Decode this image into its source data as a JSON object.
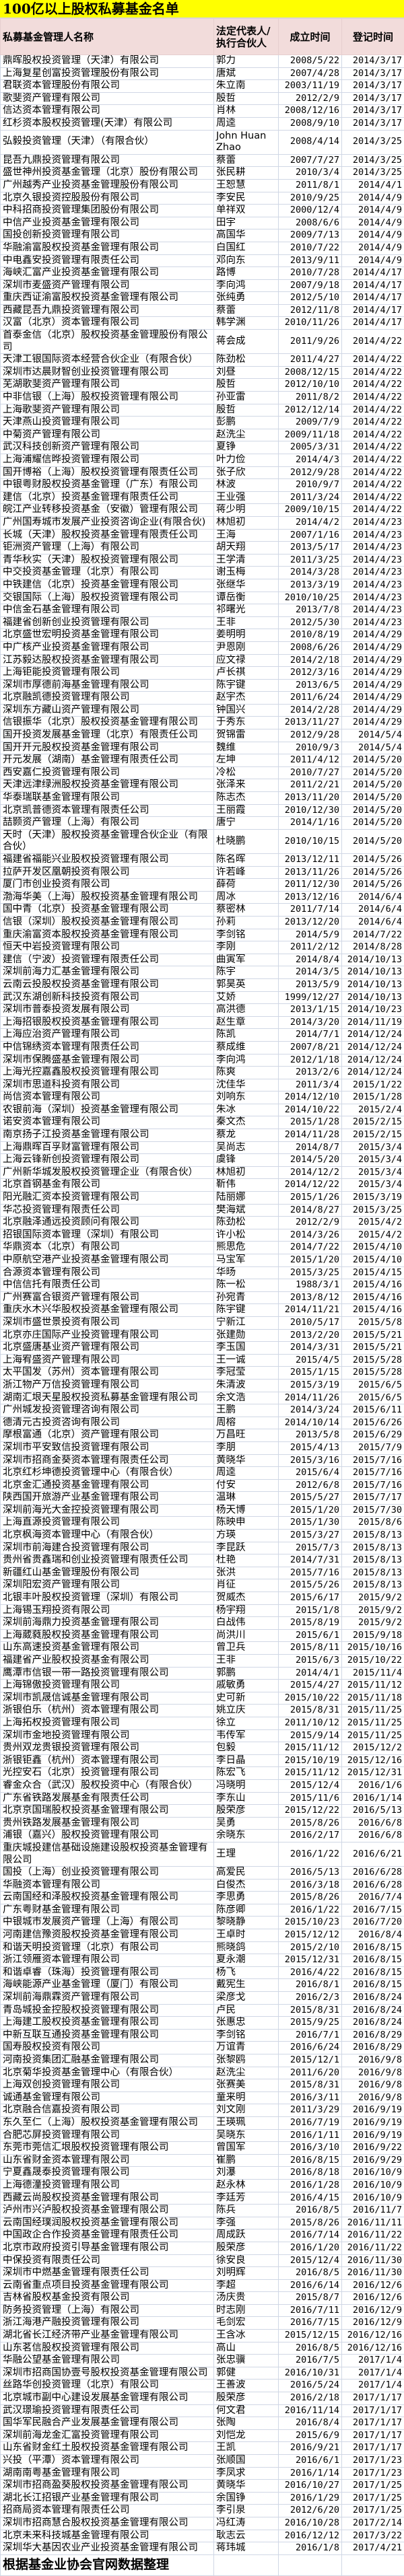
{
  "title": "100亿以上股权私募基金名单",
  "colors": {
    "title_bg": "#ffff00",
    "header_bg": "#f2dcdb",
    "grid": "#d0d7e5"
  },
  "table": {
    "headers": [
      "私募基金管理人名称",
      "法定代表人/执行合伙人",
      "成立时间",
      "登记时间"
    ],
    "rows": [
      [
        "鼎晖股权投资管理（天津）有限公司",
        "郭力",
        "2008/5/22",
        "2014/3/17"
      ],
      [
        "上海复星创富投资管理股份有限公司",
        "唐斌",
        "2007/4/28",
        "2014/3/17"
      ],
      [
        "君联资本管理股份有限公司",
        "朱立南",
        "2003/11/19",
        "2014/3/17"
      ],
      [
        "歌斐资产管理有限公司",
        "殷哲",
        "2012/2/9",
        "2014/3/17"
      ],
      [
        "信达资本管理有限公司",
        "肖林",
        "2008/12/16",
        "2014/3/17"
      ],
      [
        "红杉资本股权投资管理(天津）有限公司",
        "周逵",
        "2008/9/10",
        "2014/3/17"
      ],
      [
        "弘毅投资管理（天津）（有限合伙）",
        "John Huan Zhao",
        "2008/4/14",
        "2014/3/25"
      ],
      [
        "昆吾九鼎投资管理有限公司",
        "蔡蕾",
        "2007/7/27",
        "2014/3/25"
      ],
      [
        "盛世神州投资基金管理（北京）股份有限公司",
        "张民耕",
        "2010/3/4",
        "2014/3/25"
      ],
      [
        "广州越秀产业投资基金管理股份有限公司",
        "王恕慧",
        "2011/8/1",
        "2014/4/1"
      ],
      [
        "北京久银投资控股股份有限公司",
        "李安民",
        "2010/9/25",
        "2014/4/9"
      ],
      [
        "中科招商投资管理集团股份有限公司",
        "单祥双",
        "2000/12/4",
        "2014/4/9"
      ],
      [
        "中信产业投资基金管理有限公司",
        "田宇",
        "2008/6/6",
        "2014/4/9"
      ],
      [
        "国投创新投资管理有限公司",
        "高国华",
        "2009/7/13",
        "2014/4/9"
      ],
      [
        "华融渝富股权投资基金管理有限公司",
        "白国红",
        "2010/7/22",
        "2014/4/9"
      ],
      [
        "中电鑫安投资管理有限责任公司",
        "邓向东",
        "2013/9/11",
        "2014/4/9"
      ],
      [
        "海峡汇富产业投资基金管理有限公司",
        "路博",
        "2010/7/28",
        "2014/4/17"
      ],
      [
        "深圳市麦盛资产管理有限公司",
        "李向鸿",
        "2007/9/18",
        "2014/4/17"
      ],
      [
        "重庆西证渝富股权投资基金管理有限公司",
        "张纯勇",
        "2012/5/10",
        "2014/4/17"
      ],
      [
        "西藏昆吾九鼎投资管理有限公司",
        "蔡蕾",
        "2012/11/8",
        "2014/4/17"
      ],
      [
        "汉富（北京）资本管理有限公司",
        "韩学渊",
        "2010/11/26",
        "2014/4/17"
      ],
      [
        "首泰金信（北京）股权投资基金管理股份有限公司",
        "蒋会成",
        "2011/9/26",
        "2014/4/22"
      ],
      [
        "天津工银国际资本经营合伙企业（有限合伙）",
        "陈劲松",
        "2011/4/27",
        "2014/4/22"
      ],
      [
        "深圳市达晨财智创业投资管理有限公司",
        "刘昼",
        "2008/12/15",
        "2014/4/22"
      ],
      [
        "芜湖歌斐资产管理有限公司",
        "殷哲",
        "2012/10/10",
        "2014/4/22"
      ],
      [
        "中非信银（上海）股权投资管理有限公司",
        "孙亚雷",
        "2011/8/2",
        "2014/4/22"
      ],
      [
        "上海歌斐资产管理有限公司",
        "殷哲",
        "2012/12/14",
        "2014/4/22"
      ],
      [
        "天津燕山投资管理有限公司",
        "彭鹏",
        "2009/7/9",
        "2014/4/22"
      ],
      [
        "中菊资产管理有限公司",
        "赵洗尘",
        "2009/11/18",
        "2014/4/22"
      ],
      [
        "武汉科技创新资产管理有限公司",
        "夏铮",
        "2005/3/31",
        "2014/4/22"
      ],
      [
        "上海浦耀信晔投资管理有限公司",
        "叶力俭",
        "2014/4/3",
        "2014/4/22"
      ],
      [
        "国开博裕（上海）股权投资管理有限责任公司",
        "张子欣",
        "2012/9/28",
        "2014/4/22"
      ],
      [
        "中银粤财股权投资基金管理（广东）有限公司",
        "林波",
        "2010/9/7",
        "2014/4/22"
      ],
      [
        "建信（北京）投资基金管理有限责任公司",
        "王业强",
        "2011/3/24",
        "2014/4/22"
      ],
      [
        "皖江产业转移投资基金（安徽）管理有限公司",
        "蒋少明",
        "2009/10/15",
        "2014/4/22"
      ],
      [
        "广州国寿城市发展产业投资咨询企业(有限合伙)",
        "林旭初",
        "2014/4/2",
        "2014/4/23"
      ],
      [
        "长城（天津）股权投资基金管理有限责任公司",
        "王海",
        "2007/1/16",
        "2014/4/23"
      ],
      [
        "钜洲资产管理（上海）有限公司",
        "胡天翔",
        "2013/5/17",
        "2014/4/23"
      ],
      [
        "青华秋实（天津）股权投资管理有限公司",
        "王学清",
        "2011/3/25",
        "2014/4/23"
      ],
      [
        "中交投资基金管理（北京）有限公司",
        "谢玉梅",
        "2014/3/28",
        "2014/4/23"
      ],
      [
        "中铁建信（北京）投资基金管理有限公司",
        "张继华",
        "2013/3/19",
        "2014/4/23"
      ],
      [
        "交银国际（上海）股权投资管理有限公司",
        "谭岳衡",
        "2010/10/25",
        "2014/4/23"
      ],
      [
        "中信金石基金管理有限公司",
        "祁曙光",
        "2013/7/8",
        "2014/4/23"
      ],
      [
        "福建省创新创业投资管理有限公司",
        "王非",
        "2012/5/30",
        "2014/4/23"
      ],
      [
        "北京盛世宏明投资基金管理有限公司",
        "姜明明",
        "2010/8/19",
        "2014/4/29"
      ],
      [
        "中广核产业投资基金管理有限公司",
        "尹恩刚",
        "2008/6/26",
        "2014/4/29"
      ],
      [
        "江苏毅达股权投资基金管理有限公司",
        "应文禄",
        "2014/2/18",
        "2014/4/29"
      ],
      [
        "上海钜能投资管理有限公司",
        "卢长祺",
        "2012/3/16",
        "2014/4/29"
      ],
      [
        "深圳市厚德前海基金管理有限公司",
        "陈宇键",
        "2013/6/5",
        "2014/4/29"
      ],
      [
        "北京融凯德投资管理有限公司",
        "赵宇杰",
        "2011/6/24",
        "2014/4/29"
      ],
      [
        "深圳东方藏山资产管理有限公司",
        "钟国兴",
        "2014/2/28",
        "2014/4/29"
      ],
      [
        "信银振华（北京）股权投资基金管理有限公司",
        "于秀东",
        "2013/11/27",
        "2014/4/29"
      ],
      [
        "国开投资发展基金管理（北京）有限责任公司",
        "贺锦雷",
        "2012/9/28",
        "2014/5/4"
      ],
      [
        "国开开元股权投资基金管理有限公司",
        "魏维",
        "2010/9/3",
        "2014/5/4"
      ],
      [
        "开元发展（湖南）基金管理有限责任公司",
        "左坤",
        "2011/4/12",
        "2014/5/20"
      ],
      [
        "西安嘉仁投资管理有限公司",
        "冷松",
        "2010/7/27",
        "2014/5/20"
      ],
      [
        "天津远津绿洲股权投资基金管理有限公司",
        "张泽来",
        "2011/2/21",
        "2014/5/20"
      ],
      [
        "华泰瑞联基金管理有限公司",
        "陈志杰",
        "2013/11/20",
        "2014/5/20"
      ],
      [
        "北京凯普德资本管理有限责任公司",
        "王丽霞",
        "2010/12/30",
        "2014/5/20"
      ],
      [
        "喆颢资产管理（上海）有限公司",
        "唐宁",
        "2014/1/16",
        "2014/5/20"
      ],
      [
        "天时（天津）股权投资基金管理合伙企业（有限合伙）",
        "杜晓鹏",
        "2010/10/15",
        "2014/5/20"
      ],
      [
        "福建省福能兴业股权投资管理有限公司",
        "陈名晖",
        "2013/12/11",
        "2014/5/26"
      ],
      [
        "拉萨开发区凰朝投资有限公司",
        "许若峰",
        "2013/11/26",
        "2014/5/26"
      ],
      [
        "厦门市创业投资有限公司",
        "薛荷",
        "2011/12/30",
        "2014/5/26"
      ],
      [
        "渤海华美（上海）股权投资基金管理有限公司",
        "周冰",
        "2013/12/16",
        "2014/6/4"
      ],
      [
        "国中青（北京）投资基金管理有限公司",
        "蔡密林",
        "2011/7/14",
        "2014/6/4"
      ],
      [
        "信银（深圳）股权投资基金管理有限公司",
        "孙莉",
        "2013/12/20",
        "2014/6/4"
      ],
      [
        "重庆渝富资本股权投资基金管理有限公司",
        "李剑铭",
        "2014/5/9",
        "2014/7/22"
      ],
      [
        "恒天中岩投资管理有限公司",
        "李刚",
        "2011/2/12",
        "2014/8/28"
      ],
      [
        "建信（宁波）投资管理有限责任公司",
        "曲寅军",
        "2014/8/4",
        "2014/10/13"
      ],
      [
        "深圳前海力汇基金管理有限公司",
        "陈宇",
        "2014/3/5",
        "2014/10/13"
      ],
      [
        "云南云投股权投资基金管理有限公司",
        "郭昊英",
        "2013/5/9",
        "2014/10/13"
      ],
      [
        "武汉东湖创新科技投资有限公司",
        "艾娇",
        "1999/12/27",
        "2014/10/13"
      ],
      [
        "深圳市普泰投资发展有限公司",
        "高洪德",
        "2013/1/15",
        "2014/10/23"
      ],
      [
        "上海招银股权投资基金管理有限公司",
        "赵生章",
        "2014/3/20",
        "2014/11/19"
      ],
      [
        "上海应治资产管理有限公司",
        "陈凯",
        "2014/7/1",
        "2014/12/24"
      ],
      [
        "中信锦绣资本管理有限责任公司",
        "蔡成维",
        "2007/8/21",
        "2014/12/24"
      ],
      [
        "深圳市保腾盛基金管理有限公司",
        "李向鸿",
        "2012/1/18",
        "2014/12/24"
      ],
      [
        "上海光控嘉鑫股权投资管理有限公司",
        "陈爽",
        "2013/2/6",
        "2014/12/24"
      ],
      [
        "深圳市思道科投资有限公司",
        "沈佳华",
        "2011/3/4",
        "2015/1/22"
      ],
      [
        "尚信资本管理有限公司",
        "刘响东",
        "2014/12/10",
        "2015/1/28"
      ],
      [
        "农银前海（深圳）投资基金管理有限公司",
        "朱冰",
        "2014/10/22",
        "2015/2/4"
      ],
      [
        "诺安资本管理有限公司",
        "秦文杰",
        "2015/1/28",
        "2015/2/15"
      ],
      [
        "南京扬子江投资基金管理有限公司",
        "蔡龙",
        "2014/11/28",
        "2015/2/15"
      ],
      [
        "上海鼎晖百孚财富管理有限公司",
        "吴尚志",
        "2014/8/7",
        "2015/3/4"
      ],
      [
        "上海云锋新创投资管理有限公司",
        "虞锋",
        "2014/5/20",
        "2015/3/4"
      ],
      [
        "广州新华城发股权投资管理企业（有限合伙）",
        "林旭初",
        "2014/12/2",
        "2015/3/4"
      ],
      [
        "北京首钢基金有限公司",
        "靳伟",
        "2014/12/22",
        "2015/3/4"
      ],
      [
        "阳光融汇资本投资管理有限公司",
        "陆丽娜",
        "2015/1/26",
        "2015/3/19"
      ],
      [
        "华芯投资管理有限责任公司",
        "樊海斌",
        "2014/8/27",
        "2015/3/25"
      ],
      [
        "北京融泽通远投资顾问有限公司",
        "陈劲松",
        "2012/2/9",
        "2015/4/2"
      ],
      [
        "招银国际资本管理（深圳）有限公司",
        "许小松",
        "2014/3/26",
        "2015/4/2"
      ],
      [
        "华鼎资本（北京）有限公司",
        "熊思危",
        "2014/7/22",
        "2015/4/10"
      ],
      [
        "中原航空港产业投资基金管理有限公司",
        "马宝军",
        "2015/1/20",
        "2015/4/10"
      ],
      [
        "合源资本管理有限公司",
        "华旸",
        "2015/3/25",
        "2015/4/15"
      ],
      [
        "中信信托有限责任公司",
        "陈一松",
        "1988/3/1",
        "2015/4/16"
      ],
      [
        "广州赛富合银资产管理有限公司",
        "孙宛青",
        "2013/8/12",
        "2015/4/16"
      ],
      [
        "重庆水木兴华股权投资基金管理有限公司",
        "陈宇键",
        "2014/11/21",
        "2015/4/16"
      ],
      [
        "深圳市盛世景投资有限公司",
        "宁新江",
        "2010/5/17",
        "2015/5/8"
      ],
      [
        "北京亦庄国际产业投资管理有限公司",
        "张建勋",
        "2013/2/20",
        "2015/5/21"
      ],
      [
        "北京盛唐基业资产管理有限公司",
        "李玉国",
        "2014/3/31",
        "2015/5/21"
      ],
      [
        "上海宥盛资产管理有限公司",
        "王一诚",
        "2015/4/5",
        "2015/5/28"
      ],
      [
        "太平国发（苏州）资本管理有限公司",
        "李冠莹",
        "2015/1/15",
        "2015/5/28"
      ],
      [
        "浙江物产万信投资管理有限公司",
        "朱清波",
        "2015/3/19",
        "2015/6/5"
      ],
      [
        "湖南汇垠天星股权投资私募基金管理有限公司",
        "余文浩",
        "2014/11/26",
        "2015/6/5"
      ],
      [
        "广州城发投资管理咨询有限公司",
        "王鹏",
        "2014/3/24",
        "2015/6/11"
      ],
      [
        "德清元古投资咨询有限公司",
        "周榕",
        "2014/10/14",
        "2015/6/26"
      ],
      [
        "摩根富通（北京）资产管理有限公司",
        "万昌旺",
        "2013/5/8",
        "2015/6/29"
      ],
      [
        "深圳市平安致信投资管理有限公司",
        "李朋",
        "2015/4/13",
        "2015/7/9"
      ],
      [
        "深圳市招商金葵资本管理有限责任公司",
        "黄晓华",
        "2015/3/16",
        "2015/7/16"
      ],
      [
        "北京红杉坤德投资管理中心（有限合伙）",
        "周逵",
        "2015/6/4",
        "2015/7/16"
      ],
      [
        "北京金汇通投资基金管理有限公司",
        "付安",
        "2012/6/8",
        "2015/7/16"
      ],
      [
        "陕西国开旅游产业基金管理有限公司",
        "温琳",
        "2015/5/27",
        "2015/7/17"
      ],
      [
        "深圳前海光大金控投资管理有限公司",
        "杨天博",
        "2015/1/20",
        "2015/7/30"
      ],
      [
        "上海直源投资管理有限公司",
        "陈映申",
        "2015/1/30",
        "2015/8/6"
      ],
      [
        "北京枫海资本管理中心（有限合伙）",
        "方瑛",
        "2015/3/27",
        "2015/8/13"
      ],
      [
        "深圳市前海建合投资管理有限公司",
        "李昆跃",
        "2015/7/3",
        "2015/8/13"
      ],
      [
        "贵州省贵鑫瑞和创业投资管理有限责任公司",
        "杜艳",
        "2014/7/31",
        "2015/8/13"
      ],
      [
        "新疆红山基金管理股份有限公司",
        "张洪",
        "2015/7/16",
        "2015/8/13"
      ],
      [
        "深圳阳宏资产管理有限公司",
        "肖征",
        "2015/5/26",
        "2015/8/13"
      ],
      [
        "北银丰叶股权投资管理（深圳）有限公司",
        "贺威杰",
        "2015/6/17",
        "2015/9/2"
      ],
      [
        "上海锡玉翔投资有限公司",
        "杨宇翔",
        "2015/1/8",
        "2015/9/2"
      ],
      [
        "深圳前海鼎力投资基金管理有限公司",
        "白战伟",
        "2015/8/19",
        "2015/9/2"
      ],
      [
        "上海葳蕤股权投资基金管理有限公司",
        "尚洪川",
        "2015/6/1",
        "2015/9/18"
      ],
      [
        "山东高速投资基金管理有限公司",
        "曾卫兵",
        "2015/8/11",
        "2015/10/16"
      ],
      [
        "福建省产业股权投资基金有限公司",
        "王非",
        "2015/6/3",
        "2015/10/22"
      ],
      [
        "鹰潭市信银一带一路投资管理有限公司",
        "郭鹏",
        "2014/4/1",
        "2015/11/4"
      ],
      [
        "上海锦傲投资管理有限公司",
        "戚敏勇",
        "2015/4/27",
        "2015/11/12"
      ],
      [
        "深圳市凯晟信诚基金管理有限公司",
        "史可新",
        "2015/10/22",
        "2015/11/18"
      ],
      [
        "浙银伯乐（杭州）资本管理有限公司",
        "姚立庆",
        "2015/8/31",
        "2015/11/25"
      ],
      [
        "上海拓权投资管理有限公司",
        "徐立",
        "2011/10/12",
        "2015/11/25"
      ],
      [
        "深圳市金地投资管理有限公司",
        "韦传军",
        "2015/9/14",
        "2015/11/25"
      ],
      [
        "贵州双龙贵银投资管理有限公司",
        "包毅",
        "2015/11/12",
        "2015/12/2"
      ],
      [
        "浙银钜鑫（杭州）资本管理有限公司",
        "李日晶",
        "2015/10/19",
        "2015/12/16"
      ],
      [
        "光控安石（北京）投资管理有限公司",
        "陈宏飞",
        "2015/11/12",
        "2015/12/31"
      ],
      [
        "睿金众合（武汉）股权投资中心（有限合伙）",
        "冯晓明",
        "2015/12/4",
        "2016/1/6"
      ],
      [
        "广东省铁路发展基金有限责任公司",
        "李东山",
        "2015/11/6",
        "2016/1/14"
      ],
      [
        "北京京国瑞股权投资基金管理有限公司",
        "殷荣彦",
        "2015/12/22",
        "2016/5/13"
      ],
      [
        "贵州铁路发展基金管理有限公司",
        "吴勇",
        "2015/8/26",
        "2016/6/8"
      ],
      [
        "浦银（嘉兴）股权投资管理有限公司",
        "余晓东",
        "2016/2/17",
        "2016/6/8"
      ],
      [
        "重庆城投建信基础设施建设股权投资基金管理有限公司",
        "王理",
        "2016/1/22",
        "2016/6/21"
      ],
      [
        "国投（上海）创业投资管理有限公司",
        "高爱民",
        "2016/5/13",
        "2016/6/28"
      ],
      [
        "华融资本管理有限公司",
        "白俊杰",
        "2016/3/18",
        "2016/6/28"
      ],
      [
        "云南国经和泽股权投资基金管理有限公司",
        "李思勇",
        "2015/8/26",
        "2016/7/4"
      ],
      [
        "广东粤财基金管理有限公司",
        "陈彦卿",
        "2016/1/22",
        "2016/7/15"
      ],
      [
        "中银城市发展资产管理（上海）有限公司",
        "黎晓静",
        "2015/10/23",
        "2016/7/20"
      ],
      [
        "河南建信豫资股权投资基金管理有限公司",
        "王卓时",
        "2015/12/12",
        "2016/8/4"
      ],
      [
        "和谐天明投资管理（北京）有限公司",
        "熊晓鸽",
        "2015/2/10",
        "2016/8/15"
      ],
      [
        "浙江领雁资本管理有限公司",
        "夏永潮",
        "2015/12/31",
        "2016/8/15"
      ],
      [
        "和谐卓睿（珠海）投资管理有限公司",
        "杨飞",
        "2016/4/22",
        "2016/8/15"
      ],
      [
        "海峡能源产业基金管理（厦门）有限公司",
        "戴宪生",
        "2016/8/1",
        "2016/8/15"
      ],
      [
        "深圳前海鼎霖资产管理有限公司",
        "梁彦戈",
        "2016/2/3",
        "2016/8/24"
      ],
      [
        "青岛城投金控股权投资管理有限公司",
        "卢民",
        "2015/8/31",
        "2016/8/24"
      ],
      [
        "上海建工股权投资基金管理有限公司",
        "张惠忠",
        "2015/9/25",
        "2016/8/24"
      ],
      [
        "中新互联互通投资基金管理有限公司",
        "李剑铭",
        "2016/7/1",
        "2016/8/29"
      ],
      [
        "国寿股权投资有限公司",
        "万谊青",
        "2016/6/24",
        "2016/8/29"
      ],
      [
        "河南投资集团汇融基金管理有限公司",
        "张黎鸥",
        "2015/12/1",
        "2016/9/8"
      ],
      [
        "北京菊华投资基金管理中心（有限合伙）",
        "赵洗尘",
        "2011/6/20",
        "2016/9/8"
      ],
      [
        "上海双创投资管理有限公司",
        "张赛美",
        "2015/8/31",
        "2016/9/8"
      ],
      [
        "诚通基金管理有限公司",
        "童来明",
        "2016/3/11",
        "2016/9/8"
      ],
      [
        "北京融合信嘉投资有限公司",
        "刘文刚",
        "2011/3/29",
        "2016/9/19"
      ],
      [
        "东久至仁（上海）股权投资基金管理有限公司",
        "王瑛珮",
        "2016/7/19",
        "2016/9/19"
      ],
      [
        "合肥芯屏投资管理有限公司",
        "吴晓东",
        "2016/1/11",
        "2016/9/19"
      ],
      [
        "东莞市莞信汇垠股权投资管理有限公司",
        "曾国军",
        "2016/3/10",
        "2016/9/22"
      ],
      [
        "山东省财金资本管理有限公司",
        "崔鹏",
        "2016/8/15",
        "2016/9/29"
      ],
      [
        "宁夏鑫晟泰投资管理有限公司",
        "刘瀑",
        "2016/8/18",
        "2016/10/9"
      ],
      [
        "上海德潼投资管理有限公司",
        "赵永林",
        "2016/1/28",
        "2016/10/9"
      ],
      [
        "西藏云尚股权投资基金管理有限公司",
        "李廷芳",
        "2016/4/15",
        "2016/10/9"
      ],
      [
        "泸州市兴泸股权投资基金管理有限公司",
        "陈兵",
        "2016/8/5",
        "2016/11/7"
      ],
      [
        "云南国经璞润股权投资基金管理有限公司",
        "李强",
        "2015/8/26",
        "2016/11/11"
      ],
      [
        "中国政企合作投资基金管理有限责任公司",
        "周成跃",
        "2016/7/14",
        "2016/11/22"
      ],
      [
        "北京市政府投资引导基金管理有限公司",
        "殷荣彦",
        "2016/1/20",
        "2016/11/22"
      ],
      [
        "中保投资有限责任公司",
        "徐安良",
        "2015/12/4",
        "2016/11/30"
      ],
      [
        "深圳市中燃基金管理有限责任公司",
        "刘明辉",
        "2016/8/5",
        "2016/11/30"
      ],
      [
        "云南省重点项目投资基金管理有限公司",
        "李超",
        "2016/6/14",
        "2016/12/6"
      ],
      [
        "吉林省股权基金投资有限公司",
        "汤庆贵",
        "2015/8/7",
        "2016/12/6"
      ],
      [
        "防务投资管理（上海）有限公司",
        "时志刚",
        "2016/7/11",
        "2016/12/9"
      ],
      [
        "浙江海港产融投资管理有限公司",
        "毛剑宏",
        "2016/7/15",
        "2016/12/9"
      ],
      [
        "湖北省长江经济带产业基金管理有限公司",
        "王含冰",
        "2015/12/15",
        "2016/12/16"
      ],
      [
        "山东茗信股权投资管理有限公司",
        "高山",
        "2016/8/5",
        "2016/12/16"
      ],
      [
        "华融公望基金管理有限公司",
        "张忠骥",
        "2016/7/5",
        "2017/1/4"
      ],
      [
        "深圳市招商国协壹号股权投资基金管理有限公司",
        "郭健",
        "2016/10/31",
        "2017/1/4"
      ],
      [
        "丝路华创投资管理（北京）有限公司",
        "王善波",
        "2016/5/24",
        "2017/1/4"
      ],
      [
        "北京城市副中心建设发展基金管理有限公司",
        "殷荣彦",
        "2016/2/18",
        "2017/1/17"
      ],
      [
        "武汉璟瑜投资管理有限责任公司",
        "何文君",
        "2016/11/14",
        "2017/1/17"
      ],
      [
        "国华军民融合产业发展基金管理有限公司",
        "张陶",
        "2016/8/4",
        "2017/1/17"
      ],
      [
        "深圳前海龙金汇富投资管理有限公司",
        "刘恺龙",
        "2015/6/9",
        "2017/1/17"
      ],
      [
        "山东省财金红土股权投资基金管理有限公司",
        "王凯",
        "2016/9/21",
        "2017/1/17"
      ],
      [
        "兴投（平潭）资本管理有限公司",
        "张顺国",
        "2016/6/1",
        "2017/1/23"
      ],
      [
        "湖南南粤基金管理有限公司",
        "李凤求",
        "2016/1/14",
        "2017/1/23"
      ],
      [
        "深圳市招商盈葵股权投资基金管理有限公司",
        "黄晓华",
        "2016/10/27",
        "2017/1/25"
      ],
      [
        "湖北长江招银产业基金管理有限公司",
        "余国铮",
        "2016/1/29",
        "2017/1/25"
      ],
      [
        "招商局资本管理有限责任公司",
        "李引泉",
        "2012/6/20",
        "2017/1/25"
      ],
      [
        "深圳市招商慧合股权投资基金管理有限公司",
        "冯红涛",
        "2016/10/28",
        "2017/2/14"
      ],
      [
        "北京未来科技城基金管理有限公司",
        "耿志云",
        "2016/12/12",
        "2017/3/22"
      ],
      [
        "深圳华大基因农业产业投资基金管理有限公司",
        "蒋玮城",
        "2016/1/8",
        "2017/4/21"
      ]
    ]
  },
  "footer": "根据基金业协会官网数据整理"
}
